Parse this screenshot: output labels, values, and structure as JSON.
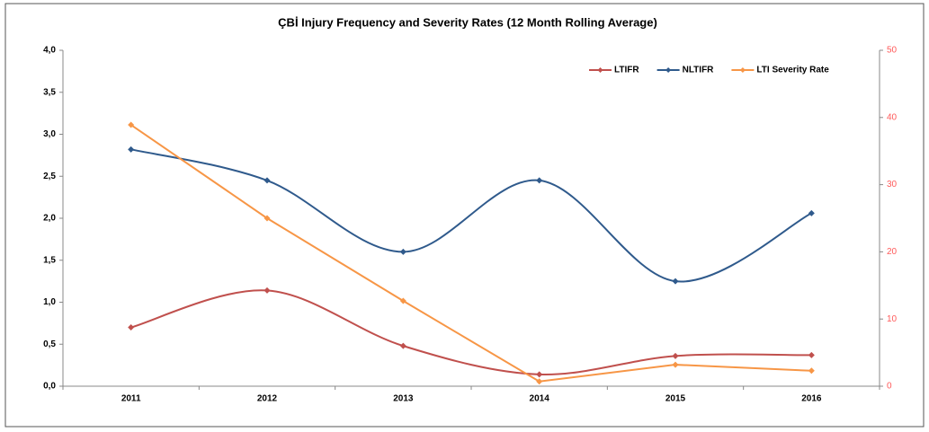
{
  "chart_data": {
    "type": "line",
    "title": "ÇBİ Injury Frequency and Severity Rates (12 Month Rolling Average)",
    "categories": [
      "2011",
      "2012",
      "2013",
      "2014",
      "2015",
      "2016"
    ],
    "series": [
      {
        "name": "LTIFR",
        "color": "#c0504d",
        "smooth": true,
        "values": [
          0.7,
          1.14,
          0.48,
          0.14,
          0.36,
          0.37
        ]
      },
      {
        "name": "NLTIFR",
        "color": "#2f5a8c",
        "smooth": true,
        "values": [
          2.82,
          2.45,
          1.6,
          2.45,
          1.25,
          2.06
        ]
      },
      {
        "name": "LTI Severity Rate",
        "color": "#f79646",
        "smooth": false,
        "axis": "y2",
        "values": [
          38.9,
          25.0,
          12.7,
          0.7,
          3.2,
          2.3
        ]
      }
    ],
    "ylim": [
      0,
      4
    ],
    "yticks": [
      {
        "value": 0,
        "label": "0,0"
      },
      {
        "value": 0.5,
        "label": "0,5"
      },
      {
        "value": 1,
        "label": "1,0"
      },
      {
        "value": 1.5,
        "label": "1,5"
      },
      {
        "value": 2,
        "label": "2,0"
      },
      {
        "value": 2.5,
        "label": "2,5"
      },
      {
        "value": 3,
        "label": "3,0"
      },
      {
        "value": 3.5,
        "label": "3,5"
      },
      {
        "value": 4,
        "label": "4,0"
      }
    ],
    "y2lim": [
      0,
      50
    ],
    "y2ticks": [
      0,
      10,
      20,
      30,
      40,
      50
    ],
    "legend": "upper right"
  }
}
